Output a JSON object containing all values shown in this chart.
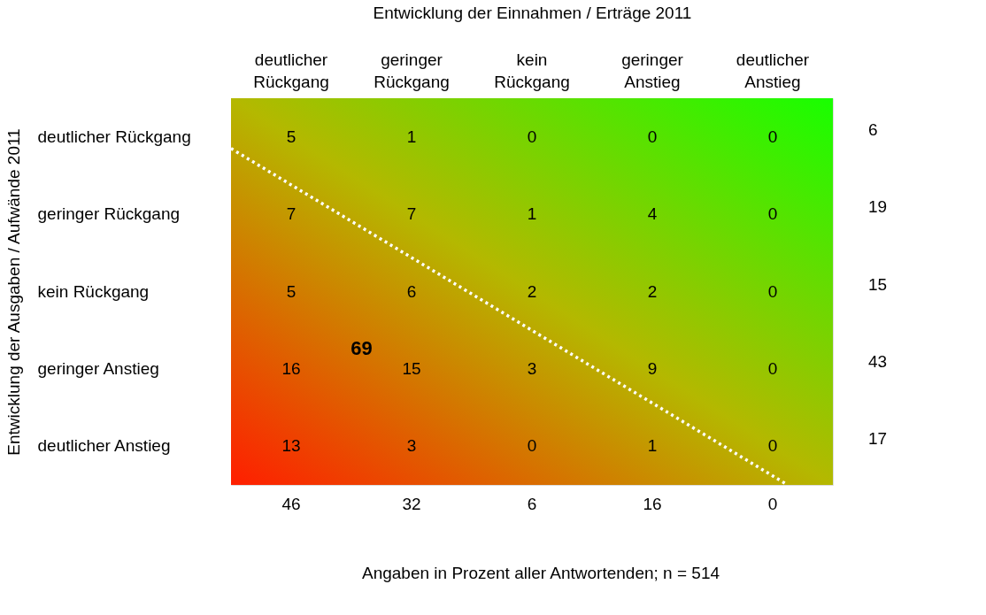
{
  "chart_data": {
    "type": "heatmap",
    "xlabel": "Entwicklung der Einnahmen / Erträge 2011",
    "ylabel": "Entwicklung der Ausgaben / Aufwände 2011",
    "categories": [
      "deutlicher Rückgang",
      "geringer Rückgang",
      "kein Rückgang",
      "geringer Anstieg",
      "deutlicher Anstieg"
    ],
    "y_categories": [
      "deutlicher Rückgang",
      "geringer Rückgang",
      "kein Rückgang",
      "geringer Anstieg",
      "deutlicher Anstieg"
    ],
    "y2_categories": [
      "6",
      "19",
      "15",
      "43",
      "17"
    ],
    "cells": [
      [
        5,
        1,
        0,
        0,
        0
      ],
      [
        7,
        7,
        1,
        4,
        0
      ],
      [
        5,
        6,
        2,
        2,
        0
      ],
      [
        16,
        15,
        3,
        9,
        0
      ],
      [
        13,
        3,
        0,
        1,
        0
      ]
    ],
    "totals": [
      "46",
      "32",
      "6",
      "16",
      "0"
    ],
    "data_labels": true,
    "annotations": [
      "69",
      "Angaben in Prozent aller Antwortenden; n = 514"
    ]
  }
}
